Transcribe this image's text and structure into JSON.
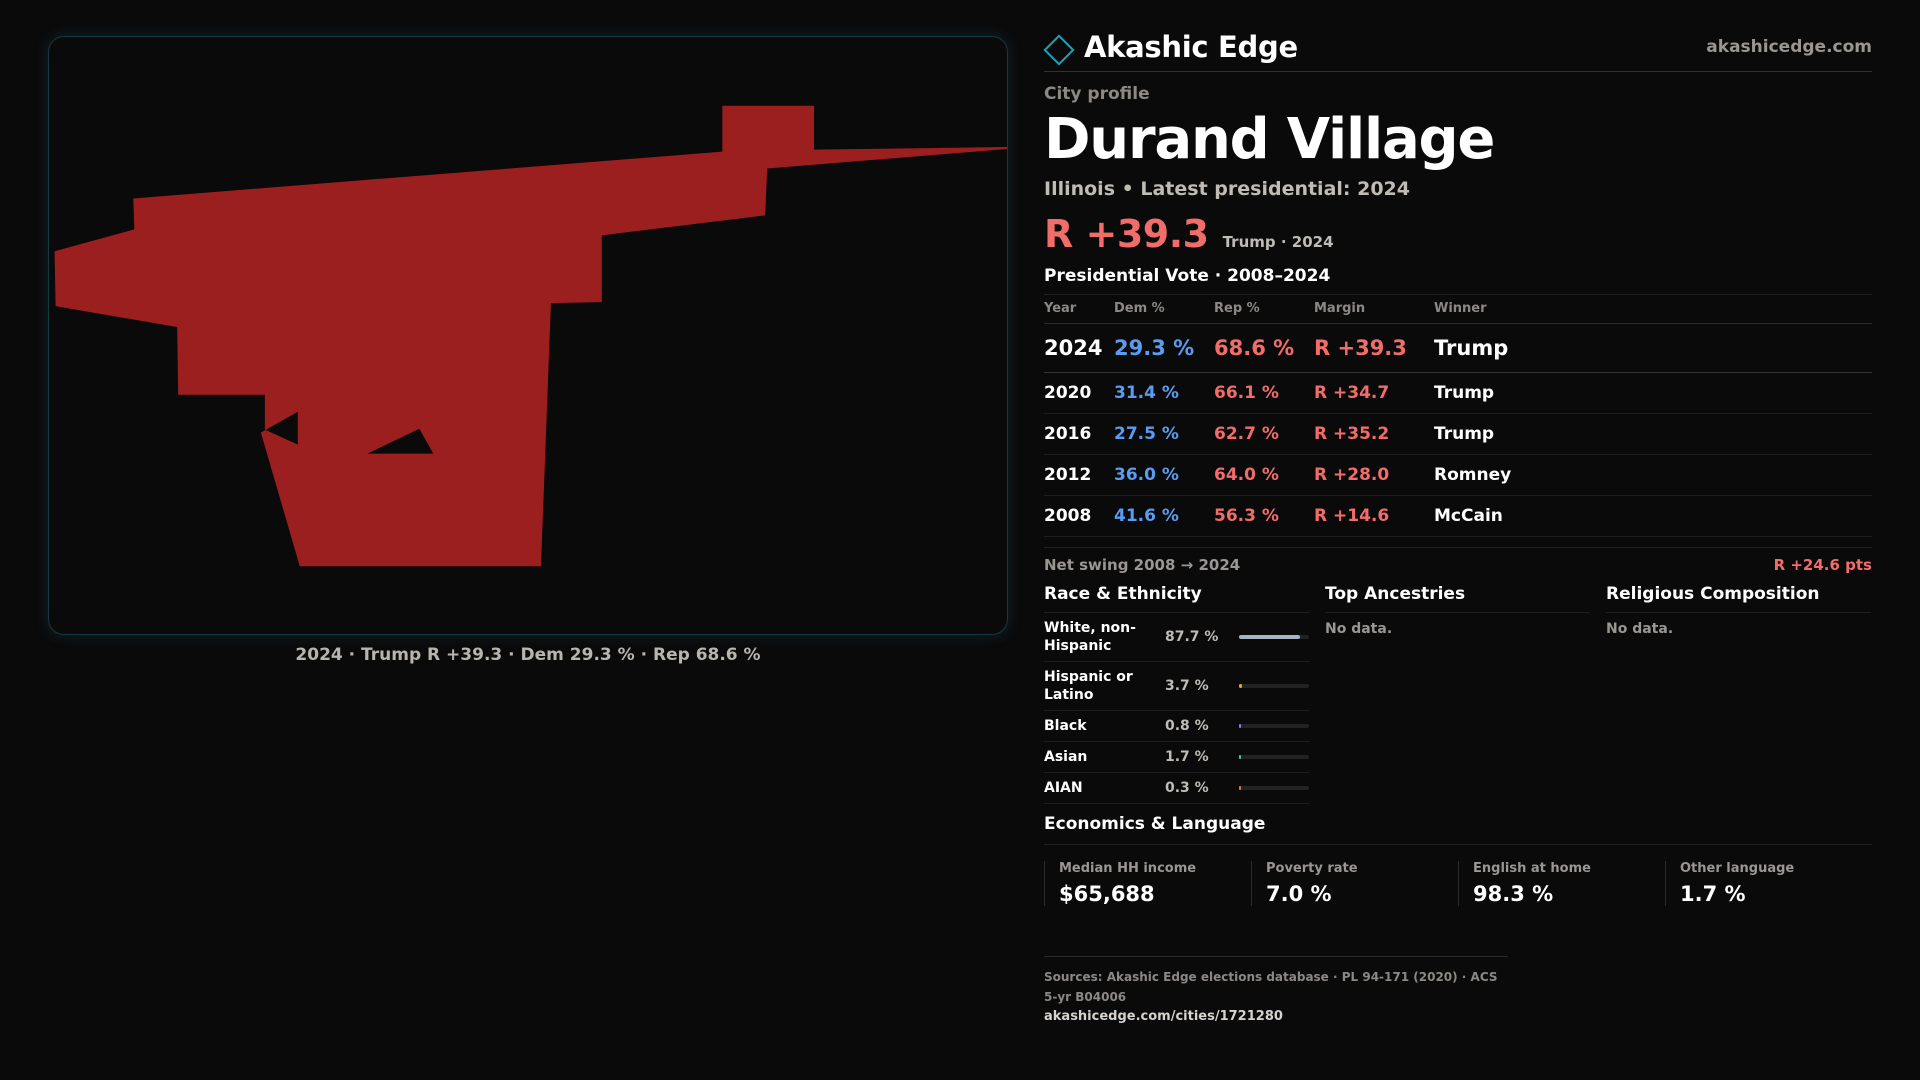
{
  "brand": {
    "name": "Akashic Edge",
    "url": "akashicedge.com"
  },
  "header": {
    "kicker": "City profile",
    "city": "Durand Village",
    "subline": "Illinois • Latest presidential: 2024",
    "margin": "R +39.3",
    "margin_note": "Trump · 2024"
  },
  "map": {
    "caption": "2024 · Trump R +39.3 · Dem 29.3 % · Rep 68.6 %",
    "fill_color": "#9c1f20"
  },
  "presidential": {
    "title": "Presidential Vote · 2008–2024",
    "headers": [
      "Year",
      "Dem %",
      "Rep %",
      "Margin",
      "Winner"
    ],
    "rows": [
      {
        "year": "2024",
        "dem": "29.3 %",
        "rep": "68.6 %",
        "margin": "R +39.3",
        "winner": "Trump"
      },
      {
        "year": "2020",
        "dem": "31.4 %",
        "rep": "66.1 %",
        "margin": "R +34.7",
        "winner": "Trump"
      },
      {
        "year": "2016",
        "dem": "27.5 %",
        "rep": "62.7 %",
        "margin": "R +35.2",
        "winner": "Trump"
      },
      {
        "year": "2012",
        "dem": "36.0 %",
        "rep": "64.0 %",
        "margin": "R +28.0",
        "winner": "Romney"
      },
      {
        "year": "2008",
        "dem": "41.6 %",
        "rep": "56.3 %",
        "margin": "R +14.6",
        "winner": "McCain"
      }
    ],
    "swing_label": "Net swing 2008 → 2024",
    "swing_value": "R +24.6 pts"
  },
  "race": {
    "title": "Race & Ethnicity",
    "rows": [
      {
        "name": "White, non-Hispanic",
        "pct": "87.7 %",
        "value": 87.7,
        "color": "#a9b3c6"
      },
      {
        "name": "Hispanic or Latino",
        "pct": "3.7 %",
        "value": 3.7,
        "color": "#e8a23a"
      },
      {
        "name": "Black",
        "pct": "0.8 %",
        "value": 0.8,
        "color": "#9b7be0"
      },
      {
        "name": "Asian",
        "pct": "1.7 %",
        "value": 1.7,
        "color": "#3fc9a6"
      },
      {
        "name": "AIAN",
        "pct": "0.3 %",
        "value": 0.3,
        "color": "#e07a3a"
      }
    ]
  },
  "ancestries": {
    "title": "Top Ancestries",
    "empty": "No data."
  },
  "religion": {
    "title": "Religious Composition",
    "empty": "No data."
  },
  "economics": {
    "title": "Economics & Language",
    "cards": [
      {
        "label": "Median HH income",
        "value": "$65,688"
      },
      {
        "label": "Poverty rate",
        "value": "7.0 %"
      },
      {
        "label": "English at home",
        "value": "98.3 %"
      },
      {
        "label": "Other language",
        "value": "1.7 %"
      }
    ]
  },
  "sources": {
    "text": "Sources: Akashic Edge elections database · PL 94-171 (2020) · ACS 5-yr B04006",
    "link": "akashicedge.com/cities/1721280"
  }
}
